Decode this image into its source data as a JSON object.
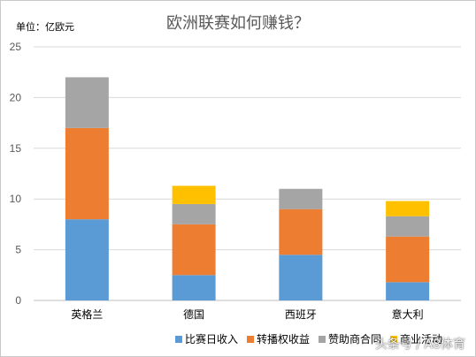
{
  "chart_data": {
    "type": "bar",
    "stacked": true,
    "title": "欧洲联赛如何赚钱？",
    "unit_label": "单位：亿欧元",
    "categories": [
      "英格兰",
      "德国",
      "西班牙",
      "意大利"
    ],
    "ylim": [
      0,
      25
    ],
    "yticks": [
      0,
      5,
      10,
      15,
      20,
      25
    ],
    "grid": true,
    "legend_position": "bottom",
    "series": [
      {
        "name": "比赛日收入",
        "color": "#5B9BD5",
        "values": [
          8.0,
          2.5,
          4.5,
          1.8
        ]
      },
      {
        "name": "转播权收益",
        "color": "#ED7D31",
        "values": [
          9.0,
          5.0,
          4.5,
          4.5
        ]
      },
      {
        "name": "赞助商合同",
        "color": "#A5A5A5",
        "values": [
          5.0,
          2.0,
          2.0,
          2.0
        ]
      },
      {
        "name": "商业活动",
        "color": "#FFC000",
        "values": [
          0,
          1.8,
          0,
          1.5
        ]
      }
    ]
  },
  "watermark": "头条号 / A8体育"
}
